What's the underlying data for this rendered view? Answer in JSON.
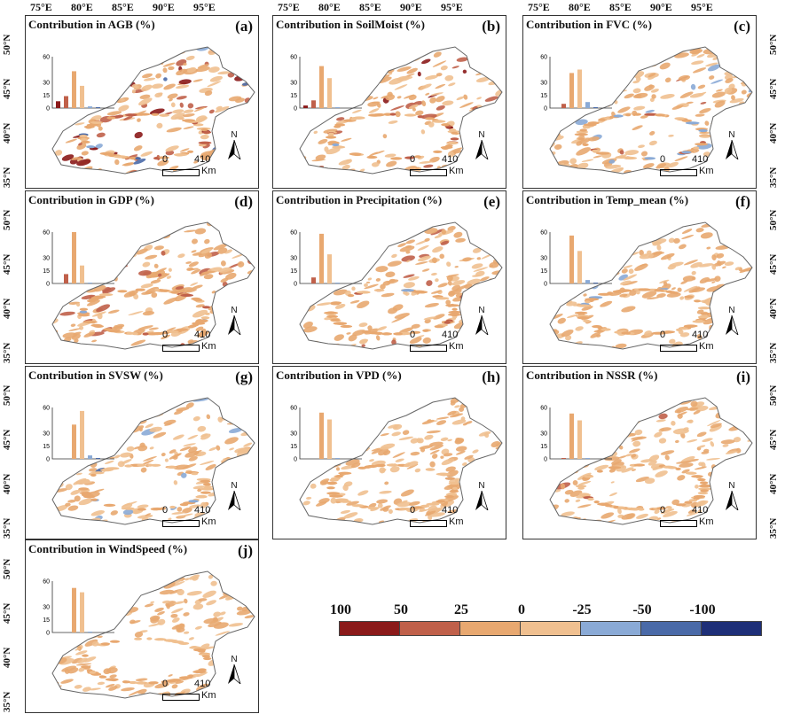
{
  "top_lon_labels": {
    "col1": [
      "75°E",
      "80°E",
      "85°E",
      "90°E",
      "95°E"
    ],
    "col2": [
      "75°E",
      "80°E",
      "85°E",
      "90°E",
      "95°E"
    ],
    "col3": [
      "75°E",
      "80°E",
      "85°E",
      "90°E",
      "95°E"
    ]
  },
  "lat_labels": {
    "row1_left": [
      "50°N",
      "45°N",
      "40°N",
      "35°N"
    ],
    "row2_left": [
      "50°N",
      "45°N",
      "40°N",
      "35°N"
    ],
    "row3_left": [
      "50°N",
      "45°N",
      "40°N",
      "35°N"
    ],
    "row4_left": [
      "50°N",
      "45°N",
      "40°N",
      "35°N"
    ],
    "row1_right": [
      "50°N",
      "45°N",
      "40°N",
      "35°N"
    ],
    "row2_right": [
      "50°N",
      "45°N",
      "40°N",
      "35°N"
    ],
    "row3_right": [
      "50°N",
      "45°N",
      "40°N",
      "35°N"
    ]
  },
  "histogram_ticks": [
    "60",
    "30",
    "15",
    "0"
  ],
  "north_label": "N",
  "scalebar": {
    "zero": "0",
    "distance": "410",
    "unit": "Km"
  },
  "panels": [
    {
      "id": "a",
      "title": "Contribution in AGB (%)",
      "letter": "(a)",
      "bars": [
        8,
        14,
        43,
        26,
        2,
        1,
        0
      ]
    },
    {
      "id": "b",
      "title": "Contribution in SoilMoist (%)",
      "letter": "(b)",
      "bars": [
        3,
        9,
        49,
        35,
        1,
        0,
        0
      ]
    },
    {
      "id": "c",
      "title": "Contribution in FVC (%)",
      "letter": "(c)",
      "bars": [
        0,
        5,
        41,
        45,
        7,
        1,
        0
      ]
    },
    {
      "id": "d",
      "title": "Contribution in GDP (%)",
      "letter": "(d)",
      "bars": [
        0,
        11,
        60,
        21,
        1,
        0,
        0
      ]
    },
    {
      "id": "e",
      "title": "Contribution in Precipitation (%)",
      "letter": "(e)",
      "bars": [
        0,
        7,
        58,
        34,
        1,
        0,
        0
      ]
    },
    {
      "id": "f",
      "title": "Contribution in Temp_mean (%)",
      "letter": "(f)",
      "bars": [
        0,
        0,
        56,
        38,
        4,
        1,
        0
      ]
    },
    {
      "id": "g",
      "title": "Contribution in SVSW (%)",
      "letter": "(g)",
      "bars": [
        0,
        0,
        40,
        56,
        4,
        1,
        0
      ]
    },
    {
      "id": "h",
      "title": "Contribution in VPD (%)",
      "letter": "(h)",
      "bars": [
        0,
        0,
        54,
        46,
        1,
        0,
        0
      ]
    },
    {
      "id": "i",
      "title": "Contribution in NSSR (%)",
      "letter": "(i)",
      "bars": [
        0,
        1,
        53,
        45,
        1,
        0,
        0
      ]
    },
    {
      "id": "j",
      "title": "Contribution in WindSpeed (%)",
      "letter": "(j)",
      "bars": [
        0,
        0,
        52,
        47,
        1,
        0,
        0
      ]
    }
  ],
  "legend": {
    "labels": [
      "100",
      "50",
      "25",
      "0",
      "-25",
      "-50",
      "-100"
    ],
    "colors": [
      "#8b1a1a",
      "#c0604a",
      "#e8a870",
      "#f0c090",
      "#8aaad6",
      "#4a6aa8",
      "#1e2f78"
    ]
  }
}
